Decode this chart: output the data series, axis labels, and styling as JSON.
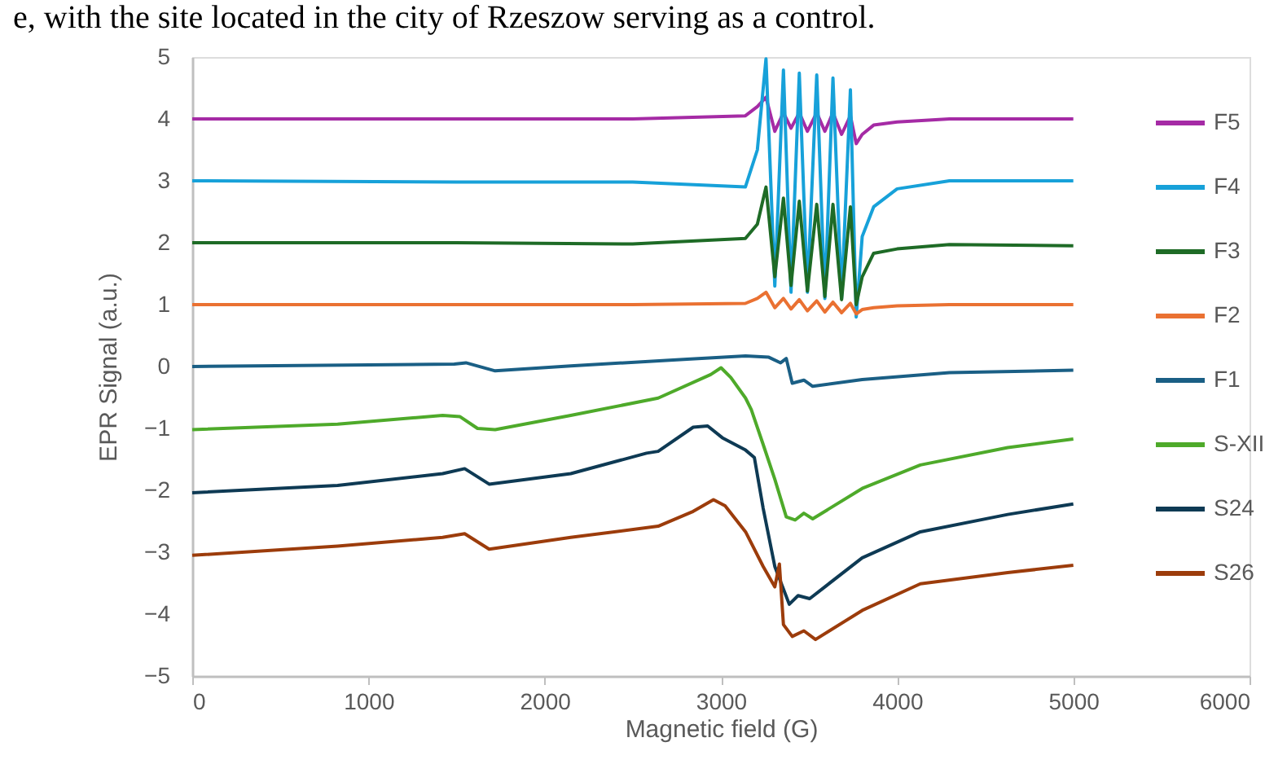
{
  "chart_data": {
    "type": "line",
    "xlabel": "Magnetic field    (G)",
    "ylabel": "EPR Signal  (a.u.)",
    "annotations": [
      "e, with the site located in the city of Rzeszow serving as a control."
    ],
    "xlim": [
      0,
      6000
    ],
    "xticks": [
      0,
      1000,
      2000,
      3000,
      4000,
      5000,
      6000
    ],
    "ylim": [
      -5,
      5
    ],
    "yticks": [
      -5,
      -4,
      -3,
      -2,
      -1,
      0,
      1,
      2,
      3,
      4,
      5
    ],
    "grid": false,
    "legend": "right",
    "marker": "none",
    "line_style": "solid",
    "series": [
      {
        "name": "F5",
        "color": "#a52ba5",
        "x": [
          0,
          1500,
          2500,
          3139,
          3207,
          3256,
          3306,
          3355,
          3398,
          3445,
          3491,
          3544,
          3590,
          3636,
          3685,
          3735,
          3768,
          3802,
          3867,
          4000,
          4297,
          5000
        ],
        "values": [
          4.0,
          4.0,
          4.0,
          4.05,
          4.2,
          4.35,
          3.8,
          4.1,
          3.85,
          4.1,
          3.8,
          4.1,
          3.8,
          4.1,
          3.75,
          4.05,
          3.6,
          3.75,
          3.9,
          3.95,
          4.0,
          4.0
        ]
      },
      {
        "name": "F4",
        "color": "#17a1d9",
        "x": [
          0,
          1500,
          2500,
          3139,
          3207,
          3256,
          3306,
          3355,
          3398,
          3445,
          3491,
          3544,
          3590,
          3636,
          3685,
          3735,
          3768,
          3802,
          3867,
          4000,
          4297,
          5000
        ],
        "values": [
          3.0,
          2.98,
          2.98,
          2.9,
          3.5,
          4.97,
          1.3,
          4.79,
          1.2,
          4.74,
          1.2,
          4.71,
          1.1,
          4.66,
          1.1,
          4.47,
          0.8,
          2.1,
          2.58,
          2.87,
          3.0,
          3.0
        ]
      },
      {
        "name": "F3",
        "color": "#1e6b26",
        "x": [
          0,
          1500,
          2500,
          3139,
          3207,
          3256,
          3306,
          3355,
          3398,
          3445,
          3491,
          3544,
          3590,
          3636,
          3685,
          3735,
          3768,
          3802,
          3867,
          4000,
          4297,
          5000
        ],
        "values": [
          2.0,
          2.0,
          1.98,
          2.07,
          2.3,
          2.9,
          1.45,
          2.72,
          1.31,
          2.67,
          1.22,
          2.62,
          1.13,
          2.62,
          1.08,
          2.58,
          1.0,
          1.45,
          1.83,
          1.9,
          1.97,
          1.95
        ]
      },
      {
        "name": "F2",
        "color": "#ea7132",
        "x": [
          0,
          1500,
          2500,
          3139,
          3207,
          3256,
          3306,
          3355,
          3398,
          3445,
          3491,
          3544,
          3590,
          3636,
          3685,
          3735,
          3768,
          3802,
          3867,
          4000,
          4297,
          5000
        ],
        "values": [
          1.0,
          1.0,
          1.0,
          1.02,
          1.1,
          1.2,
          0.95,
          1.1,
          0.93,
          1.08,
          0.9,
          1.06,
          0.88,
          1.04,
          0.87,
          1.02,
          0.85,
          0.92,
          0.95,
          0.98,
          1.0,
          1.0
        ]
      },
      {
        "name": "F1",
        "color": "#1a5f85",
        "x": [
          0,
          1487,
          1553,
          1719,
          2148,
          2809,
          3140,
          3272,
          3339,
          3371,
          3405,
          3471,
          3521,
          3802,
          4297,
          5000
        ],
        "values": [
          0.0,
          0.04,
          0.06,
          -0.07,
          0.01,
          0.12,
          0.17,
          0.15,
          0.06,
          0.13,
          -0.27,
          -0.22,
          -0.32,
          -0.21,
          -0.1,
          -0.06
        ]
      },
      {
        "name": "S-XII",
        "color": "#4eaa2a",
        "x": [
          0,
          825,
          1421,
          1520,
          1619,
          1719,
          2148,
          2644,
          2942,
          3001,
          3057,
          3140,
          3173,
          3240,
          3306,
          3371,
          3421,
          3471,
          3521,
          3802,
          4132,
          4628,
          5000
        ],
        "values": [
          -1.02,
          -0.93,
          -0.79,
          -0.81,
          -1.0,
          -1.02,
          -0.79,
          -0.51,
          -0.13,
          -0.02,
          -0.18,
          -0.51,
          -0.7,
          -1.26,
          -1.82,
          -2.43,
          -2.48,
          -2.37,
          -2.46,
          -1.97,
          -1.59,
          -1.31,
          -1.17
        ]
      },
      {
        "name": "S24",
        "color": "#0e3a54",
        "x": [
          0,
          825,
          1421,
          1546,
          1685,
          2148,
          2578,
          2644,
          2843,
          2925,
          3008,
          3140,
          3190,
          3240,
          3306,
          3388,
          3438,
          3504,
          3802,
          4132,
          4628,
          5000
        ],
        "values": [
          -2.04,
          -1.92,
          -1.73,
          -1.65,
          -1.9,
          -1.73,
          -1.4,
          -1.37,
          -0.98,
          -0.96,
          -1.15,
          -1.35,
          -1.47,
          -2.29,
          -3.23,
          -3.84,
          -3.7,
          -3.75,
          -3.09,
          -2.67,
          -2.39,
          -2.22
        ]
      },
      {
        "name": "S26",
        "color": "#9c3c0b",
        "x": [
          0,
          825,
          1421,
          1546,
          1685,
          2148,
          2644,
          2843,
          2958,
          3024,
          3140,
          3240,
          3306,
          3332,
          3355,
          3405,
          3471,
          3537,
          3802,
          4132,
          4628,
          5000
        ],
        "values": [
          -3.05,
          -2.9,
          -2.76,
          -2.7,
          -2.95,
          -2.76,
          -2.58,
          -2.34,
          -2.15,
          -2.25,
          -2.67,
          -3.23,
          -3.56,
          -3.19,
          -4.17,
          -4.36,
          -4.27,
          -4.41,
          -3.94,
          -3.51,
          -3.33,
          -3.21
        ]
      }
    ]
  }
}
